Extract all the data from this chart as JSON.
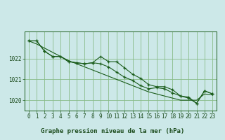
{
  "title": "Graphe pression niveau de la mer (hPa)",
  "bg_color": "#cce8e8",
  "grid_color": "#88bb88",
  "line_color": "#1a5c1a",
  "x_labels": [
    "0",
    "1",
    "2",
    "3",
    "4",
    "5",
    "6",
    "7",
    "8",
    "9",
    "10",
    "11",
    "12",
    "13",
    "14",
    "15",
    "16",
    "17",
    "18",
    "19",
    "20",
    "21",
    "22",
    "23"
  ],
  "series1": [
    1022.85,
    1022.85,
    1022.35,
    1022.1,
    1022.1,
    1021.85,
    1021.8,
    1021.75,
    1021.8,
    1022.1,
    1021.85,
    1021.85,
    1021.55,
    1021.25,
    1021.05,
    1020.75,
    1020.65,
    1020.65,
    1020.5,
    1020.2,
    1020.15,
    1019.85,
    1020.45,
    1020.3
  ],
  "series2": [
    1022.85,
    1022.85,
    1022.35,
    1022.1,
    1022.1,
    1021.85,
    1021.8,
    1021.75,
    1021.8,
    1021.75,
    1021.6,
    1021.35,
    1021.1,
    1020.95,
    1020.7,
    1020.55,
    1020.6,
    1020.55,
    1020.35,
    1020.2,
    1020.1,
    1019.85,
    1020.45,
    1020.3
  ],
  "trend": [
    1022.85,
    1022.7,
    1022.5,
    1022.3,
    1022.1,
    1021.9,
    1021.75,
    1021.6,
    1021.45,
    1021.3,
    1021.15,
    1021.0,
    1020.85,
    1020.7,
    1020.55,
    1020.4,
    1020.3,
    1020.2,
    1020.1,
    1020.0,
    1020.0,
    1020.0,
    1020.3,
    1020.25
  ],
  "ylim_min": 1019.5,
  "ylim_max": 1023.3,
  "yticks": [
    1020,
    1021,
    1022
  ],
  "title_fontsize": 6.5,
  "tick_fontsize": 5.5
}
